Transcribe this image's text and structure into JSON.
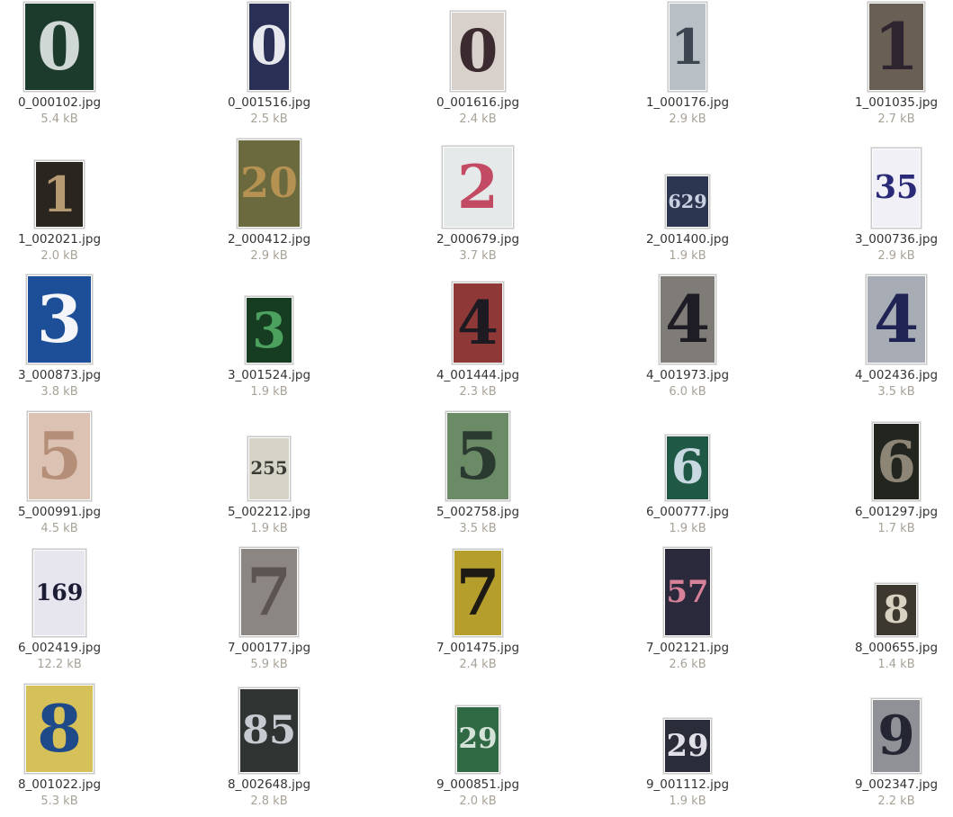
{
  "files": [
    {
      "name": "0_000102.jpg",
      "size": "5.4 kB",
      "glyph": "0",
      "bg": "#1d3b2c",
      "fg": "#cfd8d4",
      "tw": 76,
      "th": 96
    },
    {
      "name": "0_001516.jpg",
      "size": "2.5 kB",
      "glyph": "0",
      "bg": "#2a2f55",
      "fg": "#e8e8ef",
      "tw": 44,
      "th": 96
    },
    {
      "name": "0_001616.jpg",
      "size": "2.4 kB",
      "glyph": "0",
      "bg": "#d8d0cb",
      "fg": "#3b2a30",
      "tw": 58,
      "th": 86
    },
    {
      "name": "1_000176.jpg",
      "size": "2.9 kB",
      "glyph": "1",
      "bg": "#b9c0c5",
      "fg": "#3d4650",
      "tw": 40,
      "th": 96
    },
    {
      "name": "1_001035.jpg",
      "size": "2.7 kB",
      "glyph": "1",
      "bg": "#6a5f54",
      "fg": "#2d2430",
      "tw": 60,
      "th": 96
    },
    {
      "name": "1_002021.jpg",
      "size": "2.0 kB",
      "glyph": "1",
      "bg": "#2a251f",
      "fg": "#b69b72",
      "tw": 52,
      "th": 72
    },
    {
      "name": "2_000412.jpg",
      "size": "2.9 kB",
      "glyph": "20",
      "bg": "#6b6a3e",
      "fg": "#b59252",
      "tw": 68,
      "th": 96
    },
    {
      "name": "2_000679.jpg",
      "size": "3.7 kB",
      "glyph": "2",
      "bg": "#e6e9ea",
      "fg": "#c24a62",
      "tw": 76,
      "th": 88
    },
    {
      "name": "2_001400.jpg",
      "size": "1.9 kB",
      "glyph": "629",
      "bg": "#2c3650",
      "fg": "#c7d1e2",
      "tw": 46,
      "th": 56
    },
    {
      "name": "3_000736.jpg",
      "size": "2.9 kB",
      "glyph": "35",
      "bg": "#f1f0f6",
      "fg": "#2a2a78",
      "tw": 52,
      "th": 86
    },
    {
      "name": "3_000873.jpg",
      "size": "3.8 kB",
      "glyph": "3",
      "bg": "#1d4f98",
      "fg": "#f3f5f9",
      "tw": 70,
      "th": 96
    },
    {
      "name": "3_001524.jpg",
      "size": "1.9 kB",
      "glyph": "3",
      "bg": "#163d22",
      "fg": "#4ca15f",
      "tw": 50,
      "th": 72
    },
    {
      "name": "4_001444.jpg",
      "size": "2.3 kB",
      "glyph": "4",
      "bg": "#8f3838",
      "fg": "#1e1a22",
      "tw": 54,
      "th": 88
    },
    {
      "name": "4_001973.jpg",
      "size": "6.0 kB",
      "glyph": "4",
      "bg": "#7f7c78",
      "fg": "#1e1c24",
      "tw": 60,
      "th": 96
    },
    {
      "name": "4_002436.jpg",
      "size": "3.5 kB",
      "glyph": "4",
      "bg": "#a8acb4",
      "fg": "#1f2454",
      "tw": 64,
      "th": 96
    },
    {
      "name": "5_000991.jpg",
      "size": "4.5 kB",
      "glyph": "5",
      "bg": "#dcc2b2",
      "fg": "#b58e78",
      "tw": 68,
      "th": 96
    },
    {
      "name": "5_002212.jpg",
      "size": "1.9 kB",
      "glyph": "255",
      "bg": "#d6d4c8",
      "fg": "#3a3b34",
      "tw": 44,
      "th": 68
    },
    {
      "name": "5_002758.jpg",
      "size": "3.5 kB",
      "glyph": "5",
      "bg": "#6b8a66",
      "fg": "#2b3a30",
      "tw": 68,
      "th": 96
    },
    {
      "name": "6_000777.jpg",
      "size": "1.9 kB",
      "glyph": "6",
      "bg": "#1f5946",
      "fg": "#c8d9e2",
      "tw": 46,
      "th": 70
    },
    {
      "name": "6_001297.jpg",
      "size": "1.7 kB",
      "glyph": "6",
      "bg": "#22261f",
      "fg": "#8d8677",
      "tw": 50,
      "th": 84
    },
    {
      "name": "6_002419.jpg",
      "size": "12.2 kB",
      "glyph": "169",
      "bg": "#e7e6ef",
      "fg": "#1c1c34",
      "tw": 56,
      "th": 94
    },
    {
      "name": "7_000177.jpg",
      "size": "5.9 kB",
      "glyph": "7",
      "bg": "#8c8682",
      "fg": "#5b5450",
      "tw": 62,
      "th": 96
    },
    {
      "name": "7_001475.jpg",
      "size": "2.4 kB",
      "glyph": "7",
      "bg": "#b59e2c",
      "fg": "#1e1b15",
      "tw": 52,
      "th": 94
    },
    {
      "name": "7_002121.jpg",
      "size": "2.6 kB",
      "glyph": "57",
      "bg": "#2b2a3c",
      "fg": "#d8829a",
      "tw": 50,
      "th": 96
    },
    {
      "name": "8_000655.jpg",
      "size": "1.4 kB",
      "glyph": "8",
      "bg": "#3c372f",
      "fg": "#d8d2c3",
      "tw": 44,
      "th": 56
    },
    {
      "name": "8_001022.jpg",
      "size": "5.3 kB",
      "glyph": "8",
      "bg": "#d6c05a",
      "fg": "#1e4a8a",
      "tw": 74,
      "th": 96
    },
    {
      "name": "8_002648.jpg",
      "size": "2.8 kB",
      "glyph": "85",
      "bg": "#2f3331",
      "fg": "#c6cad1",
      "tw": 64,
      "th": 92
    },
    {
      "name": "9_000851.jpg",
      "size": "2.0 kB",
      "glyph": "29",
      "bg": "#2f6a45",
      "fg": "#d4e2d8",
      "tw": 46,
      "th": 72
    },
    {
      "name": "9_001112.jpg",
      "size": "1.9 kB",
      "glyph": "29",
      "bg": "#2a2c3a",
      "fg": "#e1e0e8",
      "tw": 50,
      "th": 58
    },
    {
      "name": "9_002347.jpg",
      "size": "2.2 kB",
      "glyph": "9",
      "bg": "#8f9197",
      "fg": "#242634",
      "tw": 52,
      "th": 80
    }
  ]
}
